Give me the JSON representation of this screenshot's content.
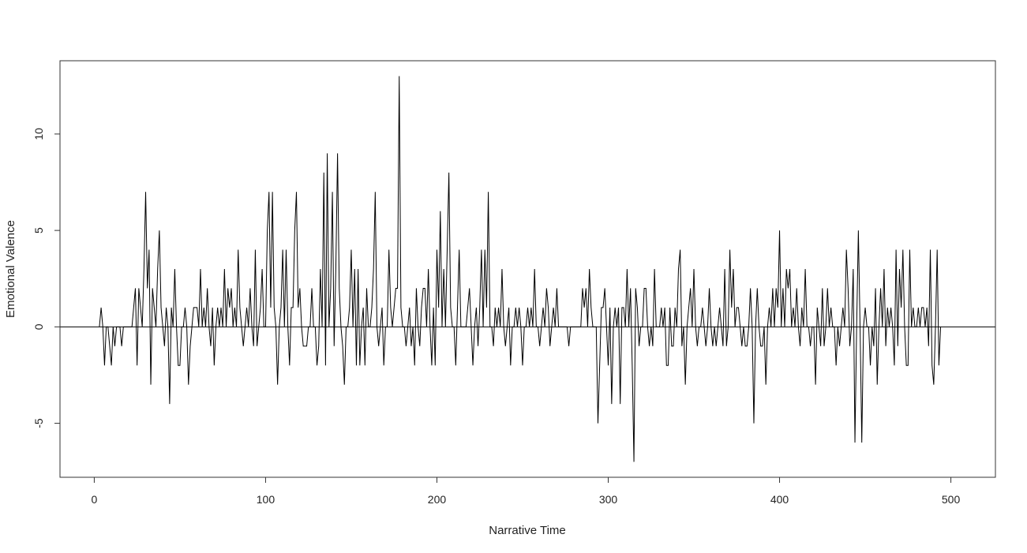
{
  "chart_data": {
    "type": "line",
    "title": "",
    "xlabel": "Narrative Time",
    "ylabel": "Emotional Valence",
    "xlim": [
      -20,
      526
    ],
    "ylim": [
      -7.8,
      13.8
    ],
    "xticks": [
      0,
      100,
      200,
      300,
      400,
      500
    ],
    "yticks": [
      -5,
      0,
      5,
      10
    ],
    "xtick_labels": [
      "0",
      "100",
      "200",
      "300",
      "400",
      "500"
    ],
    "ytick_labels": [
      "-5",
      "0",
      "5",
      "10"
    ],
    "reference_line_y": 0,
    "grid": false,
    "legend": "none",
    "series_color": "#000000",
    "x_start": 3,
    "y": [
      0,
      1,
      0,
      -2,
      0,
      0,
      -1,
      -2,
      0,
      -1,
      0,
      0,
      0,
      -1,
      0,
      0,
      0,
      0,
      0,
      0,
      1,
      2,
      -2,
      2,
      1,
      0,
      3,
      7,
      2,
      4,
      -3,
      2,
      1,
      0,
      3,
      5,
      1,
      0,
      -1,
      1,
      0,
      -4,
      1,
      0,
      3,
      0,
      -2,
      -2,
      0,
      0,
      1,
      0,
      -3,
      -1,
      0,
      1,
      1,
      1,
      0,
      3,
      0,
      1,
      0,
      2,
      0,
      -1,
      1,
      -2,
      0,
      1,
      0,
      1,
      0,
      3,
      0,
      2,
      1,
      2,
      0,
      1,
      0,
      4,
      1,
      0,
      -1,
      0,
      1,
      0,
      2,
      0,
      -1,
      4,
      -1,
      0,
      1,
      3,
      0,
      0,
      5,
      7,
      1,
      7,
      1,
      0,
      -3,
      0,
      1,
      4,
      0,
      4,
      0,
      -2,
      1,
      1,
      5,
      7,
      1,
      2,
      0,
      -1,
      -1,
      -1,
      0,
      0,
      2,
      0,
      0,
      -2,
      -1,
      3,
      0,
      8,
      -2,
      9,
      0,
      2,
      7,
      -1,
      3,
      9,
      2,
      0,
      -1,
      -3,
      0,
      0,
      1,
      4,
      0,
      3,
      -2,
      3,
      -2,
      0,
      1,
      -2,
      2,
      0,
      0,
      1,
      3,
      7,
      0,
      -1,
      0,
      1,
      -2,
      0,
      0,
      4,
      1,
      0,
      1,
      2,
      2,
      13,
      1,
      0,
      0,
      -1,
      0,
      1,
      -1,
      0,
      -2,
      2,
      0,
      -1,
      1,
      2,
      2,
      0,
      3,
      0,
      -2,
      1,
      -2,
      4,
      1,
      6,
      0,
      3,
      0,
      4,
      8,
      1,
      0,
      0,
      -2,
      1,
      4,
      0,
      0,
      0,
      0,
      1,
      2,
      0,
      -2,
      0,
      1,
      -1,
      1,
      4,
      0,
      4,
      1,
      7,
      0,
      0,
      -1,
      1,
      0,
      1,
      0,
      3,
      0,
      -1,
      0,
      1,
      -2,
      0,
      0,
      1,
      0,
      1,
      0,
      -2,
      0,
      0,
      1,
      0,
      1,
      0,
      3,
      0,
      0,
      -1,
      0,
      1,
      0,
      2,
      1,
      -1,
      0,
      1,
      0,
      2,
      0,
      0,
      0,
      0,
      0,
      0,
      -1,
      0,
      0,
      0,
      0,
      0,
      0,
      0,
      2,
      1,
      2,
      0,
      3,
      1,
      0,
      0,
      0,
      -5,
      -2,
      1,
      1,
      2,
      0,
      -2,
      1,
      -4,
      0,
      1,
      0,
      1,
      -4,
      1,
      1,
      0,
      3,
      0,
      2,
      -2,
      -7,
      2,
      1,
      -1,
      0,
      0,
      2,
      2,
      0,
      -1,
      0,
      -1,
      3,
      0,
      0,
      0,
      1,
      0,
      1,
      -2,
      -2,
      1,
      -1,
      -1,
      1,
      0,
      3,
      4,
      -1,
      0,
      -3,
      0,
      1,
      2,
      0,
      3,
      0,
      -1,
      0,
      0,
      1,
      0,
      -1,
      0,
      2,
      0,
      -1,
      0,
      -1,
      0,
      1,
      0,
      -1,
      3,
      -1,
      0,
      4,
      1,
      3,
      0,
      1,
      1,
      0,
      -1,
      0,
      -1,
      -1,
      0,
      2,
      0,
      -5,
      0,
      2,
      0,
      -1,
      -1,
      0,
      -3,
      0,
      1,
      0,
      2,
      0,
      2,
      1,
      5,
      0,
      2,
      0,
      3,
      2,
      3,
      0,
      1,
      0,
      2,
      0,
      -1,
      1,
      0,
      3,
      0,
      0,
      -1,
      0,
      0,
      -3,
      1,
      0,
      -1,
      2,
      -1,
      0,
      2,
      0,
      1,
      0,
      0,
      -2,
      0,
      -1,
      0,
      1,
      0,
      4,
      2,
      -1,
      0,
      3,
      -6,
      0,
      5,
      0,
      -6,
      0,
      1,
      0,
      0,
      -2,
      0,
      -1,
      2,
      -3,
      0,
      2,
      0,
      3,
      -1,
      1,
      0,
      1,
      0,
      -2,
      4,
      -1,
      3,
      1,
      4,
      0,
      -2,
      -2,
      4,
      0,
      1,
      0,
      0,
      1,
      0,
      1,
      1,
      0,
      1,
      -1,
      4,
      -2,
      -3,
      0,
      4,
      -2,
      0
    ]
  }
}
